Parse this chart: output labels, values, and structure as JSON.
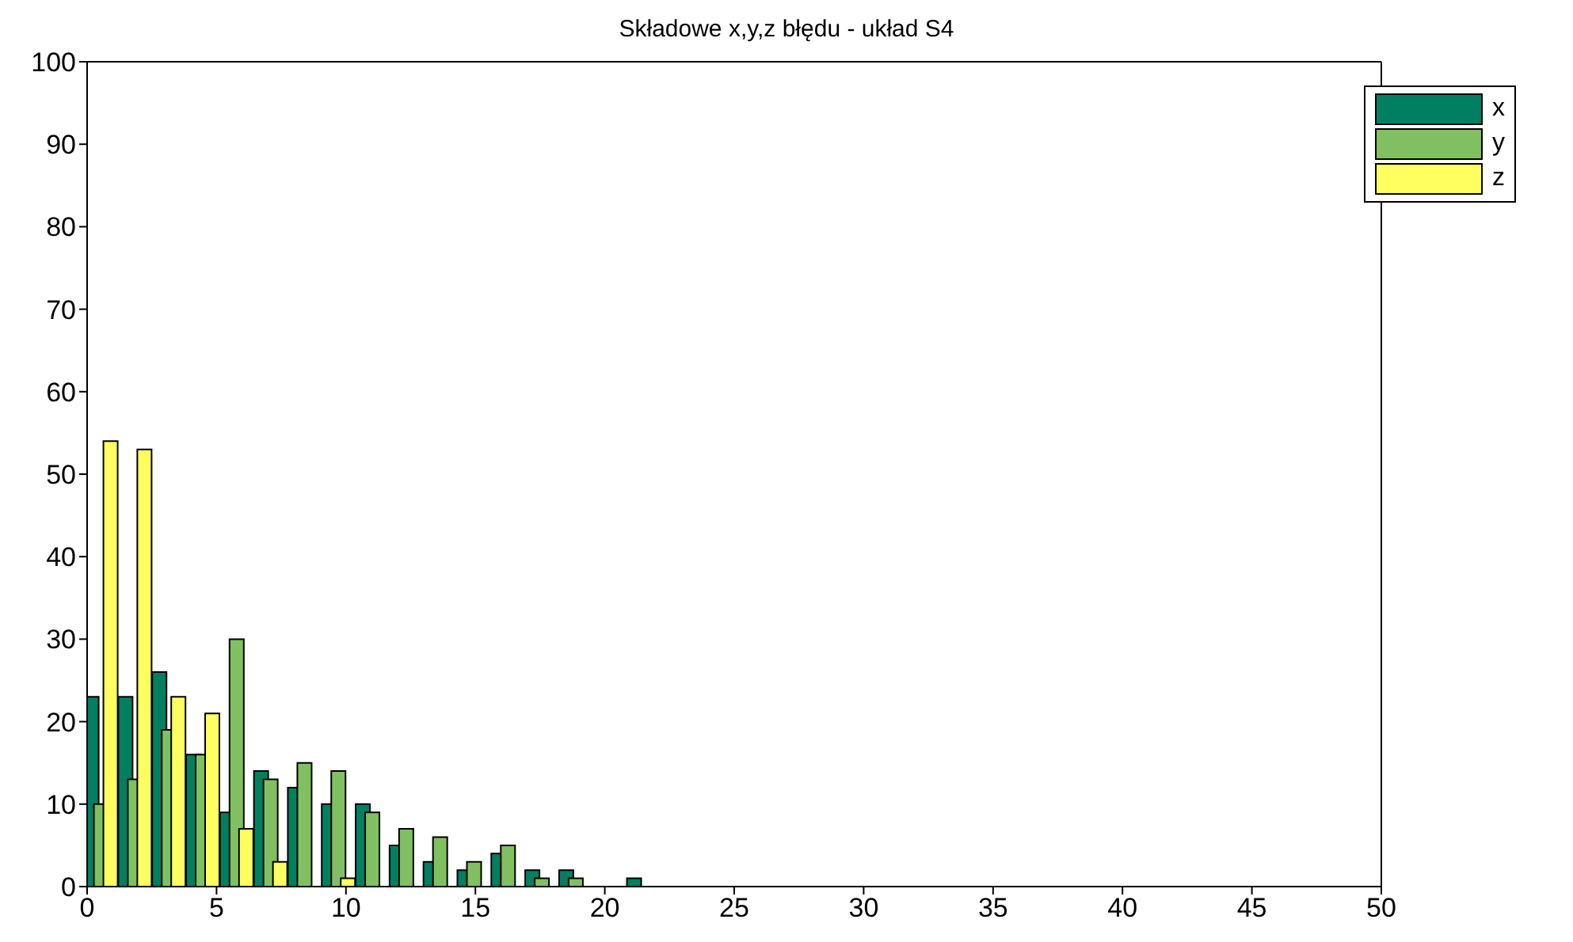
{
  "chart_data": {
    "type": "bar",
    "title": "Składowe x,y,z błędu - układ S4",
    "x": [
      0.55,
      1.86,
      3.17,
      4.48,
      5.79,
      7.1,
      8.41,
      9.72,
      11.03,
      12.34,
      13.65,
      14.96,
      16.27,
      17.58,
      18.89,
      20.2,
      21.51
    ],
    "series": [
      {
        "name": "x",
        "color": "#008060",
        "values": [
          23,
          23,
          26,
          16,
          9,
          14,
          12,
          10,
          10,
          5,
          3,
          2,
          4,
          2,
          2,
          0,
          1
        ]
      },
      {
        "name": "y",
        "color": "#80c060",
        "values": [
          10,
          13,
          19,
          16,
          30,
          13,
          15,
          14,
          9,
          7,
          6,
          3,
          5,
          1,
          1,
          0,
          0
        ]
      },
      {
        "name": "z",
        "color": "#ffff60",
        "values": [
          54,
          53,
          23,
          21,
          7,
          3,
          0,
          1,
          0,
          0,
          0,
          0,
          0,
          0,
          0,
          0,
          0
        ]
      }
    ],
    "xlim": [
      0,
      50
    ],
    "xticks": [
      0,
      5,
      10,
      15,
      20,
      25,
      30,
      35,
      40,
      45,
      50
    ],
    "ylim": [
      0,
      100
    ],
    "yticks": [
      0,
      10,
      20,
      30,
      40,
      50,
      60,
      70,
      80,
      90,
      100
    ],
    "grid": false,
    "legend": "top right"
  }
}
